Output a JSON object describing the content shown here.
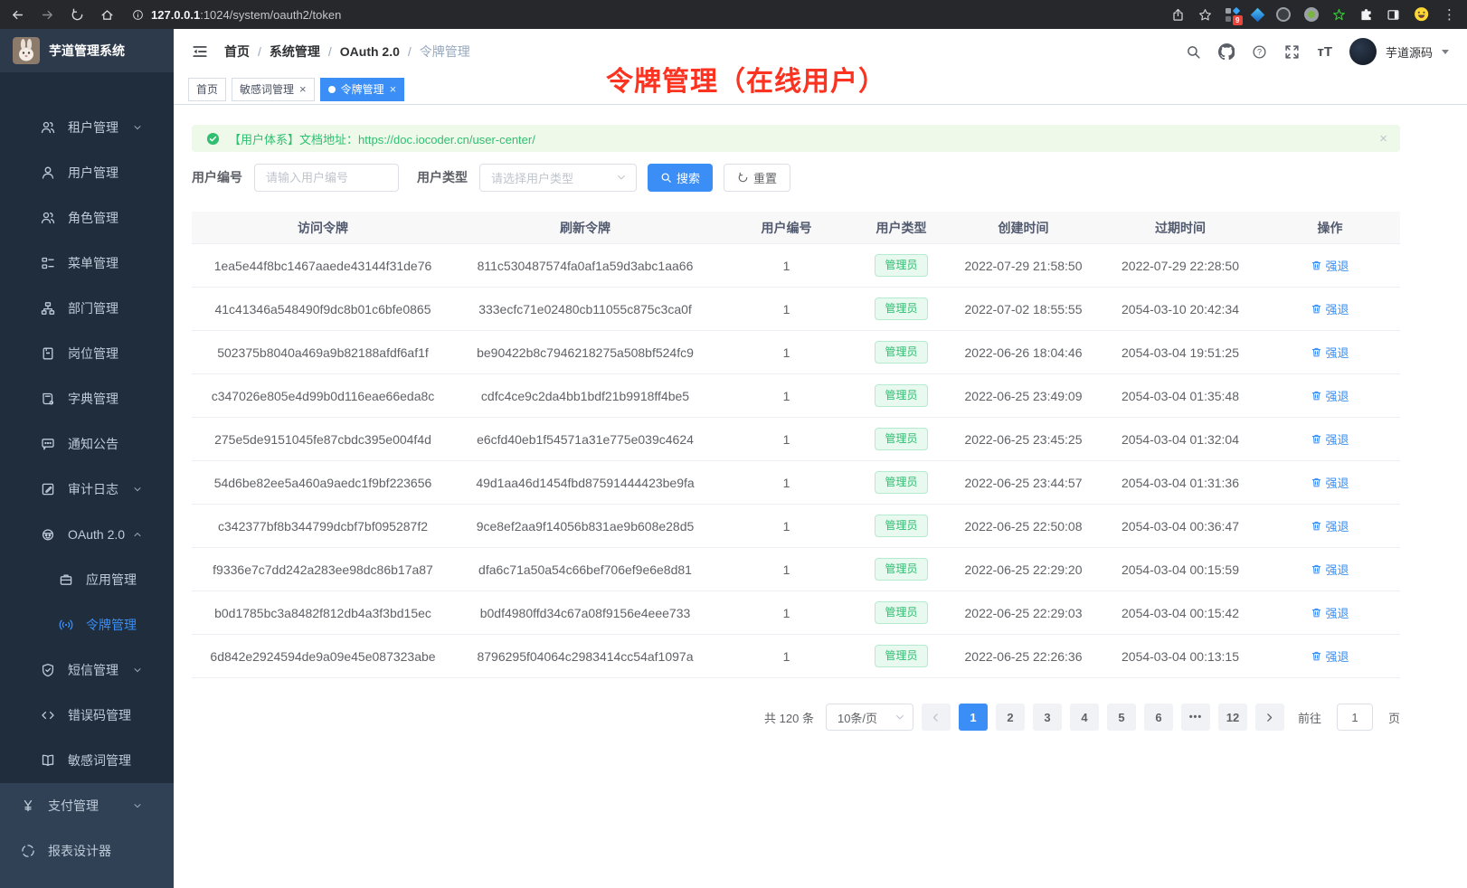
{
  "colors": {
    "accent": "#3a8ef6",
    "success": "#2fbf71",
    "annotation_red": "#fb3320"
  },
  "browser": {
    "url_host": "127.0.0.1",
    "url_path": ":1024/system/oauth2/token",
    "extension_badge": "9"
  },
  "sidebar": {
    "title": "芋道管理系统",
    "submenu_items": [
      {
        "label": "租户管理",
        "icon": "users",
        "arrow": "down",
        "level": 1
      },
      {
        "label": "用户管理",
        "icon": "user",
        "level": 1
      },
      {
        "label": "角色管理",
        "icon": "users",
        "level": 1
      },
      {
        "label": "菜单管理",
        "icon": "menu-tree",
        "level": 1
      },
      {
        "label": "部门管理",
        "icon": "org",
        "level": 1
      },
      {
        "label": "岗位管理",
        "icon": "badge",
        "level": 1
      },
      {
        "label": "字典管理",
        "icon": "dict",
        "level": 1
      },
      {
        "label": "通知公告",
        "icon": "message",
        "level": 1
      },
      {
        "label": "审计日志",
        "icon": "log",
        "arrow": "down",
        "level": 1
      },
      {
        "label": "OAuth 2.0",
        "icon": "robot",
        "arrow": "up",
        "level": 1
      },
      {
        "label": "应用管理",
        "icon": "briefcase",
        "level": 2
      },
      {
        "label": "令牌管理",
        "icon": "signal",
        "level": 2,
        "active": true
      },
      {
        "label": "短信管理",
        "icon": "shield",
        "arrow": "down",
        "level": 1
      },
      {
        "label": "错误码管理",
        "icon": "code",
        "level": 1
      },
      {
        "label": "敏感词管理",
        "icon": "open-book",
        "level": 1
      }
    ],
    "root_items": [
      {
        "label": "支付管理",
        "icon": "yen",
        "arrow": "down",
        "level": 0
      },
      {
        "label": "报表设计器",
        "icon": "chart",
        "level": 0
      }
    ]
  },
  "header": {
    "breadcrumb": [
      "首页",
      "系统管理",
      "OAuth 2.0",
      "令牌管理"
    ],
    "username": "芋道源码"
  },
  "tabs": [
    {
      "label": "首页"
    },
    {
      "label": "敏感词管理",
      "closable": true
    },
    {
      "label": "令牌管理",
      "closable": true,
      "active": true
    }
  ],
  "annotation": {
    "text": "令牌管理（在线用户）"
  },
  "alert": {
    "prefix": "【用户体系】文档地址：",
    "link": "https://doc.iocoder.cn/user-center/"
  },
  "search": {
    "user_id_label": "用户编号",
    "user_id_placeholder": "请输入用户编号",
    "user_type_label": "用户类型",
    "user_type_placeholder": "请选择用户类型",
    "search_label": "搜索",
    "reset_label": "重置"
  },
  "table": {
    "headers": [
      "访问令牌",
      "刷新令牌",
      "用户编号",
      "用户类型",
      "创建时间",
      "过期时间",
      "操作"
    ],
    "user_type_tag": "管理员",
    "action_label": "强退",
    "rows": [
      {
        "access": "1ea5e44f8bc1467aaede43144f31de76",
        "refresh": "811c530487574fa0af1a59d3abc1aa66",
        "user_id": "1",
        "created": "2022-07-29 21:58:50",
        "expires": "2022-07-29 22:28:50"
      },
      {
        "access": "41c41346a548490f9dc8b01c6bfe0865",
        "refresh": "333ecfc71e02480cb11055c875c3ca0f",
        "user_id": "1",
        "created": "2022-07-02 18:55:55",
        "expires": "2054-03-10 20:42:34"
      },
      {
        "access": "502375b8040a469a9b82188afdf6af1f",
        "refresh": "be90422b8c7946218275a508bf524fc9",
        "user_id": "1",
        "created": "2022-06-26 18:04:46",
        "expires": "2054-03-04 19:51:25"
      },
      {
        "access": "c347026e805e4d99b0d116eae66eda8c",
        "refresh": "cdfc4ce9c2da4bb1bdf21b9918ff4be5",
        "user_id": "1",
        "created": "2022-06-25 23:49:09",
        "expires": "2054-03-04 01:35:48"
      },
      {
        "access": "275e5de9151045fe87cbdc395e004f4d",
        "refresh": "e6cfd40eb1f54571a31e775e039c4624",
        "user_id": "1",
        "created": "2022-06-25 23:45:25",
        "expires": "2054-03-04 01:32:04"
      },
      {
        "access": "54d6be82ee5a460a9aedc1f9bf223656",
        "refresh": "49d1aa46d1454fbd87591444423be9fa",
        "user_id": "1",
        "created": "2022-06-25 23:44:57",
        "expires": "2054-03-04 01:31:36"
      },
      {
        "access": "c342377bf8b344799dcbf7bf095287f2",
        "refresh": "9ce8ef2aa9f14056b831ae9b608e28d5",
        "user_id": "1",
        "created": "2022-06-25 22:50:08",
        "expires": "2054-03-04 00:36:47"
      },
      {
        "access": "f9336e7c7dd242a283ee98dc86b17a87",
        "refresh": "dfa6c71a50a54c66bef706ef9e6e8d81",
        "user_id": "1",
        "created": "2022-06-25 22:29:20",
        "expires": "2054-03-04 00:15:59"
      },
      {
        "access": "b0d1785bc3a8482f812db4a3f3bd15ec",
        "refresh": "b0df4980ffd34c67a08f9156e4eee733",
        "user_id": "1",
        "created": "2022-06-25 22:29:03",
        "expires": "2054-03-04 00:15:42"
      },
      {
        "access": "6d842e2924594de9a09e45e087323abe",
        "refresh": "8796295f04064c2983414cc54af1097a",
        "user_id": "1",
        "created": "2022-06-25 22:26:36",
        "expires": "2054-03-04 00:13:15"
      }
    ]
  },
  "pagination": {
    "total": "共 120 条",
    "page_size": "10条/页",
    "pages": [
      "1",
      "2",
      "3",
      "4",
      "5",
      "6",
      "•••",
      "12"
    ],
    "active_page": "1",
    "goto_label": "前往",
    "goto_value": "1",
    "goto_unit": "页"
  }
}
